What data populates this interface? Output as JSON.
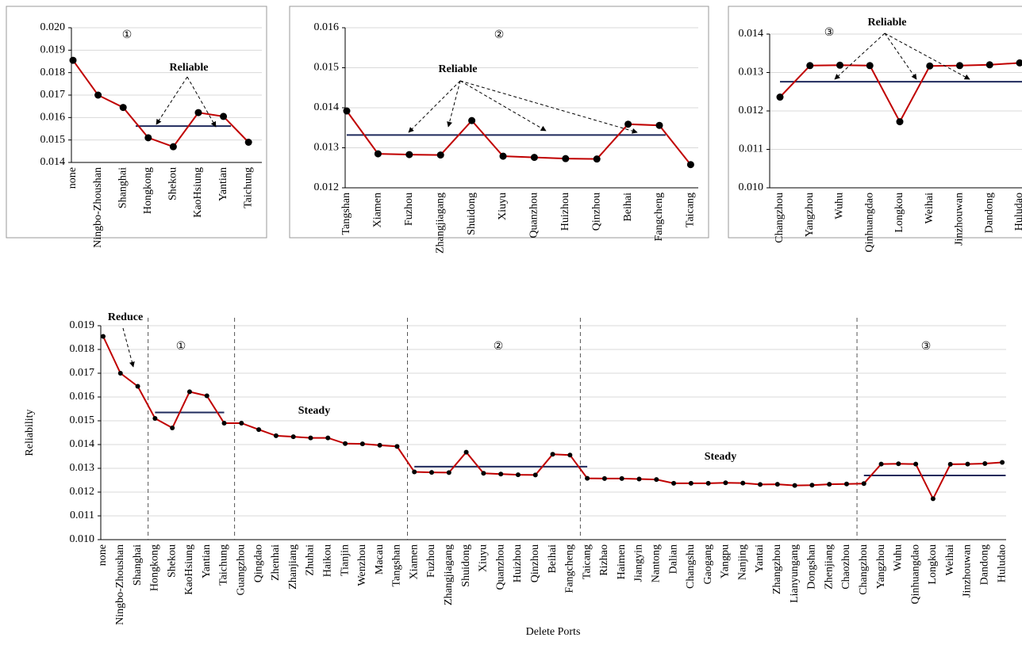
{
  "chart_data": [
    {
      "type": "line",
      "annotations": [
        "①",
        "Reliable"
      ],
      "categories": [
        "none",
        "Ningbo-Zhoushan",
        "Shanghai",
        "Hongkong",
        "Shekou",
        "KaoHsiung",
        "Yantian",
        "Taichung"
      ],
      "values": [
        0.01855,
        0.017,
        0.01645,
        0.0151,
        0.0147,
        0.01622,
        0.01605,
        0.0149
      ],
      "color": "#c00000",
      "reference_lines": [
        0.01562
      ],
      "reference_color": "#1f2a5c",
      "ylim": [
        0.014,
        0.02
      ],
      "yticks": [
        0.014,
        0.015,
        0.016,
        0.017,
        0.018,
        0.019,
        {
          "value": 0.02,
          "label": "0.020"
        }
      ],
      "grid": true
    },
    {
      "type": "line",
      "annotations": [
        "②",
        "Reliable"
      ],
      "categories": [
        "Tangshan",
        "Xiamen",
        "Fuzhou",
        "Zhangjiagang",
        "Shuidong",
        "Xiuyu",
        "Quanzhou",
        "Huizhou",
        "Qinzhou",
        "Beihai",
        "Fangcheng",
        "Taicang"
      ],
      "values": [
        0.01392,
        0.01285,
        0.01283,
        0.01282,
        0.01368,
        0.01279,
        0.01276,
        0.01273,
        0.01272,
        0.01359,
        0.01356,
        0.01258
      ],
      "color": "#c00000",
      "reference_lines": [
        0.01332
      ],
      "reference_color": "#1f2a5c",
      "ylim": [
        0.012,
        0.016
      ],
      "yticks": [
        0.012,
        0.013,
        0.014,
        0.015,
        0.016
      ],
      "grid": true
    },
    {
      "type": "line",
      "annotations": [
        "③",
        "Reliable"
      ],
      "categories": [
        "Changzhou",
        "Yangzhou",
        "Wuhu",
        "Qinhuangdao",
        "Longkou",
        "Weihai",
        "Jinzhouwan",
        "Dandong",
        "Huludao"
      ],
      "values": [
        0.01236,
        0.01318,
        0.01319,
        0.01318,
        0.01172,
        0.01317,
        0.01318,
        0.0132,
        0.01325
      ],
      "color": "#c00000",
      "reference_lines": [
        0.01276
      ],
      "reference_color": "#1f2a5c",
      "ylim": [
        0.01,
        0.014
      ],
      "yticks": [
        {
          "value": 0.01,
          "label": "0.010"
        },
        0.011,
        0.012,
        0.013,
        0.014
      ],
      "grid": true
    },
    {
      "type": "line",
      "annotations": [
        "Reduce",
        "①",
        "②",
        "③",
        "Steady",
        "Steady"
      ],
      "y_label": "Reliability",
      "x_label": "Delete Ports",
      "categories": [
        "none",
        "Ningbo-Zhoushan",
        "Shanghai",
        "Hongkong",
        "Shekou",
        "KaoHsiung",
        "Yantian",
        "Taichung",
        "Guangzhou",
        "Qingdao",
        "Zhenhai",
        "Zhanjiang",
        "Zhuhai",
        "Haikou",
        "Tianjin",
        "Wenzhou",
        "Macau",
        "Tangshan",
        "Xiamen",
        "Fuzhou",
        "Zhangjiagang",
        "Shuidong",
        "Xiuyu",
        "Quanzhou",
        "Huizhou",
        "Qinzhou",
        "Beihai",
        "Fangcheng",
        "Taicang",
        "Rizhao",
        "Haimen",
        "Jiangyin",
        "Nantong",
        "Dalian",
        "Changshu",
        "Gaogang",
        "Yangpu",
        "Nanjing",
        "Yantai",
        "Zhangzhou",
        "Lianyungang",
        "Dongshan",
        "Zhenjiang",
        "Chaozhou",
        "Changzhou",
        "Yangzhou",
        "Wuhu",
        "Qinhuangdao",
        "Longkou",
        "Weihai",
        "Jinzhouwan",
        "Dandong",
        "Huludao"
      ],
      "values": [
        0.01855,
        0.017,
        0.01645,
        0.0151,
        0.0147,
        0.01622,
        0.01605,
        0.0149,
        0.0149,
        0.01463,
        0.01437,
        0.01433,
        0.01428,
        0.01428,
        0.01404,
        0.01403,
        0.01397,
        0.01392,
        0.01285,
        0.01283,
        0.01282,
        0.01368,
        0.01279,
        0.01276,
        0.01273,
        0.01272,
        0.01359,
        0.01356,
        0.01258,
        0.01257,
        0.01257,
        0.01255,
        0.01253,
        0.01237,
        0.01237,
        0.01237,
        0.01239,
        0.01238,
        0.01232,
        0.01233,
        0.01228,
        0.01229,
        0.01233,
        0.01234,
        0.01236,
        0.01318,
        0.01319,
        0.01318,
        0.01172,
        0.01317,
        0.01318,
        0.0132,
        0.01325
      ],
      "color": "#c00000",
      "reference_lines": [
        0.01535,
        0.01307,
        0.0127
      ],
      "reference_color": "#1f2a5c",
      "ylim": [
        0.01,
        0.019
      ],
      "yticks": [
        {
          "value": 0.01,
          "label": "0.010"
        },
        0.011,
        0.012,
        0.013,
        0.014,
        0.015,
        0.016,
        0.017,
        0.018,
        0.019
      ],
      "grid": true
    }
  ]
}
